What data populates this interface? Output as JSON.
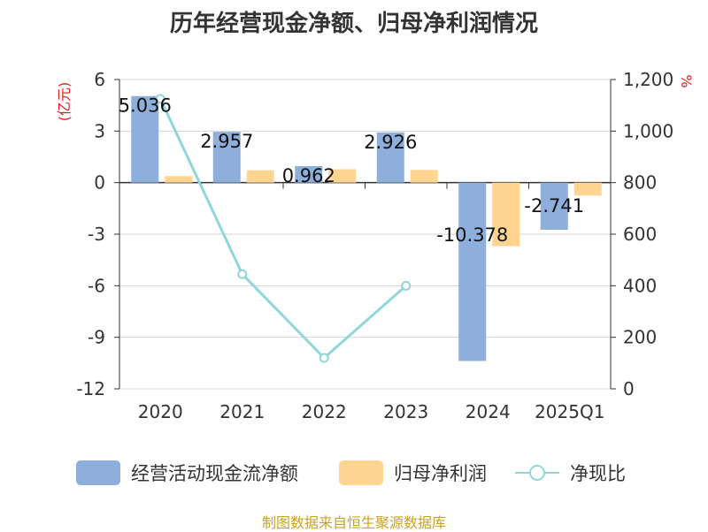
{
  "title": "历年经营现金净额、归母净利润情况",
  "source_note": "制图数据来自恒生聚源数据库",
  "colors": {
    "cash": "#8eaedb",
    "profit": "#ffd591",
    "ratio": "#8fd7d9",
    "axis_unit": "#e02020"
  },
  "chart_data": {
    "type": "bar+line",
    "categories": [
      "2020",
      "2021",
      "2022",
      "2023",
      "2024",
      "2025Q1"
    ],
    "left_axis": {
      "unit": "(亿元)",
      "ticks": [
        6,
        3,
        0,
        -3,
        -6,
        -9,
        -12
      ],
      "ylim": [
        -12,
        6
      ]
    },
    "right_axis": {
      "unit": "%",
      "ticks": [
        "1,200",
        "1,000",
        "800",
        "600",
        "400",
        "200",
        "0"
      ],
      "ylim": [
        0,
        1200
      ]
    },
    "series": [
      {
        "name": "经营活动现金流净额",
        "type": "bar",
        "axis": "left",
        "values": [
          5.036,
          2.957,
          0.962,
          2.926,
          -10.378,
          -2.741
        ],
        "labels": [
          "5.036",
          "2.957",
          "0.962",
          "2.926",
          "-10.378",
          "-2.741"
        ]
      },
      {
        "name": "归母净利润",
        "type": "bar",
        "axis": "left",
        "values": [
          0.38,
          0.72,
          0.78,
          0.74,
          -3.7,
          -0.75
        ]
      },
      {
        "name": "净现比",
        "type": "line",
        "axis": "right",
        "values": [
          1125,
          445,
          120,
          400,
          null,
          null
        ]
      }
    ]
  }
}
